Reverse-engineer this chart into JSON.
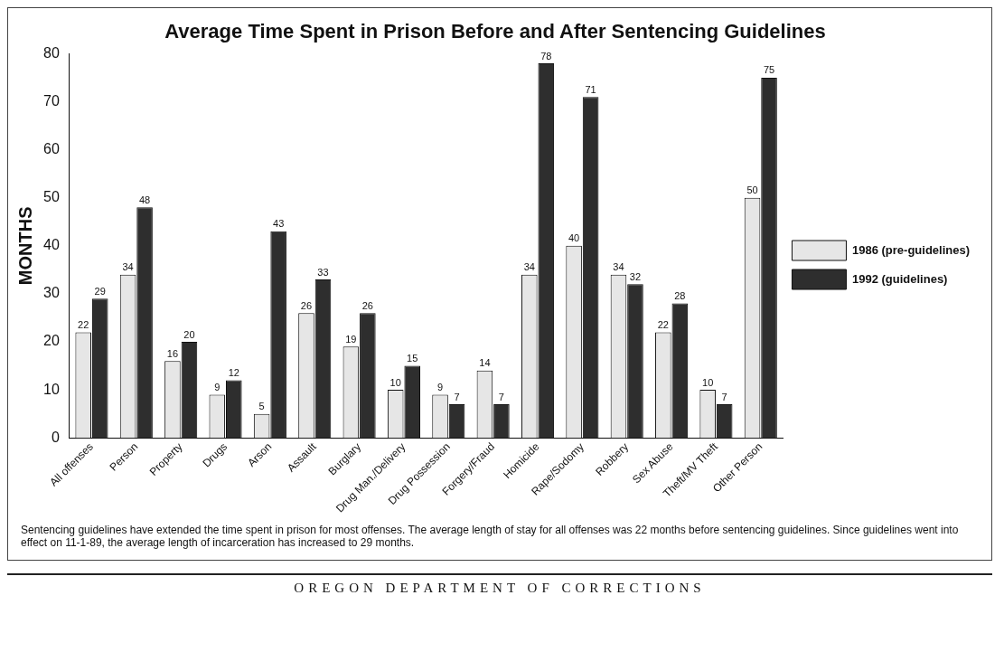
{
  "chart_data": {
    "type": "bar",
    "title": "Average Time Spent in Prison Before and After Sentencing Guidelines",
    "ylabel": "MONTHS",
    "categories": [
      "All offenses",
      "Person",
      "Property",
      "Drugs",
      "Arson",
      "Assault",
      "Burglary",
      "Drug Man./Delivery",
      "Drug Possession",
      "Forgery/Fraud",
      "Homicide",
      "Rape/Sodomy",
      "Robbery",
      "Sex Abuse",
      "Theft/MV Theft",
      "Other Person"
    ],
    "series": [
      {
        "name": "1986 (pre-guidelines)",
        "color": "#e6e6e6",
        "values": [
          22,
          34,
          16,
          9,
          5,
          26,
          19,
          10,
          9,
          14,
          34,
          40,
          34,
          22,
          10,
          50
        ]
      },
      {
        "name": "1992 (guidelines)",
        "color": "#2e2e2e",
        "values": [
          29,
          48,
          20,
          12,
          43,
          33,
          26,
          15,
          7,
          7,
          78,
          71,
          32,
          28,
          7,
          75
        ]
      }
    ],
    "ylim": [
      0,
      80
    ],
    "yticks": [
      0,
      10,
      20,
      30,
      40,
      50,
      60,
      70,
      80
    ],
    "grid": false,
    "legend": "right",
    "data_labels": true,
    "annotations": [
      "Sentencing guidelines have extended the time spent in prison for most offenses. The average length of stay for all offenses was 22 months before sentencing guidelines.  Since guidelines went into effect on 11-1-89, the average length of incarceration has increased to 29 months.",
      "OREGON DEPARTMENT OF CORRECTIONS"
    ]
  }
}
